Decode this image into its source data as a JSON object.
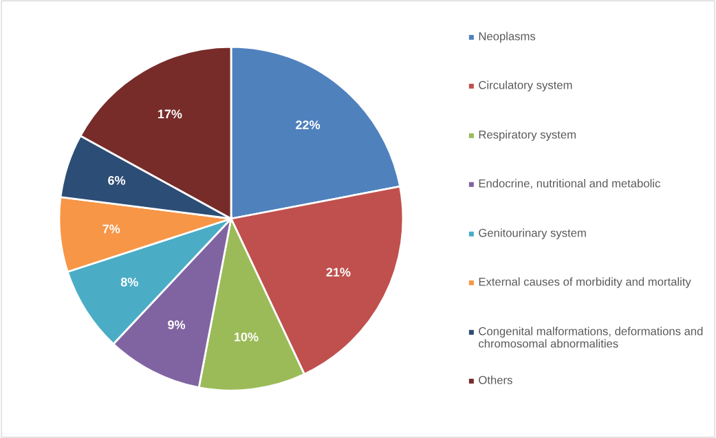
{
  "chart_data": {
    "type": "pie",
    "categories": [
      "Neoplasms",
      "Circulatory system",
      "Respiratory system",
      "Endocrine, nutritional and metabolic",
      "Genitourinary system",
      "External causes of morbidity and mortality",
      "Congenital malformations, deformations and chromosomal abnormalities",
      "Others"
    ],
    "values": [
      22,
      21,
      10,
      9,
      8,
      7,
      6,
      17
    ],
    "value_labels": [
      "22%",
      "21%",
      "10%",
      "9%",
      "8%",
      "7%",
      "6%",
      "17%"
    ],
    "colors": [
      "#4f81bd",
      "#c0504d",
      "#9bbb59",
      "#8064a2",
      "#4bacc6",
      "#f79646",
      "#2c4d75",
      "#772c2a"
    ],
    "legend": "right"
  }
}
